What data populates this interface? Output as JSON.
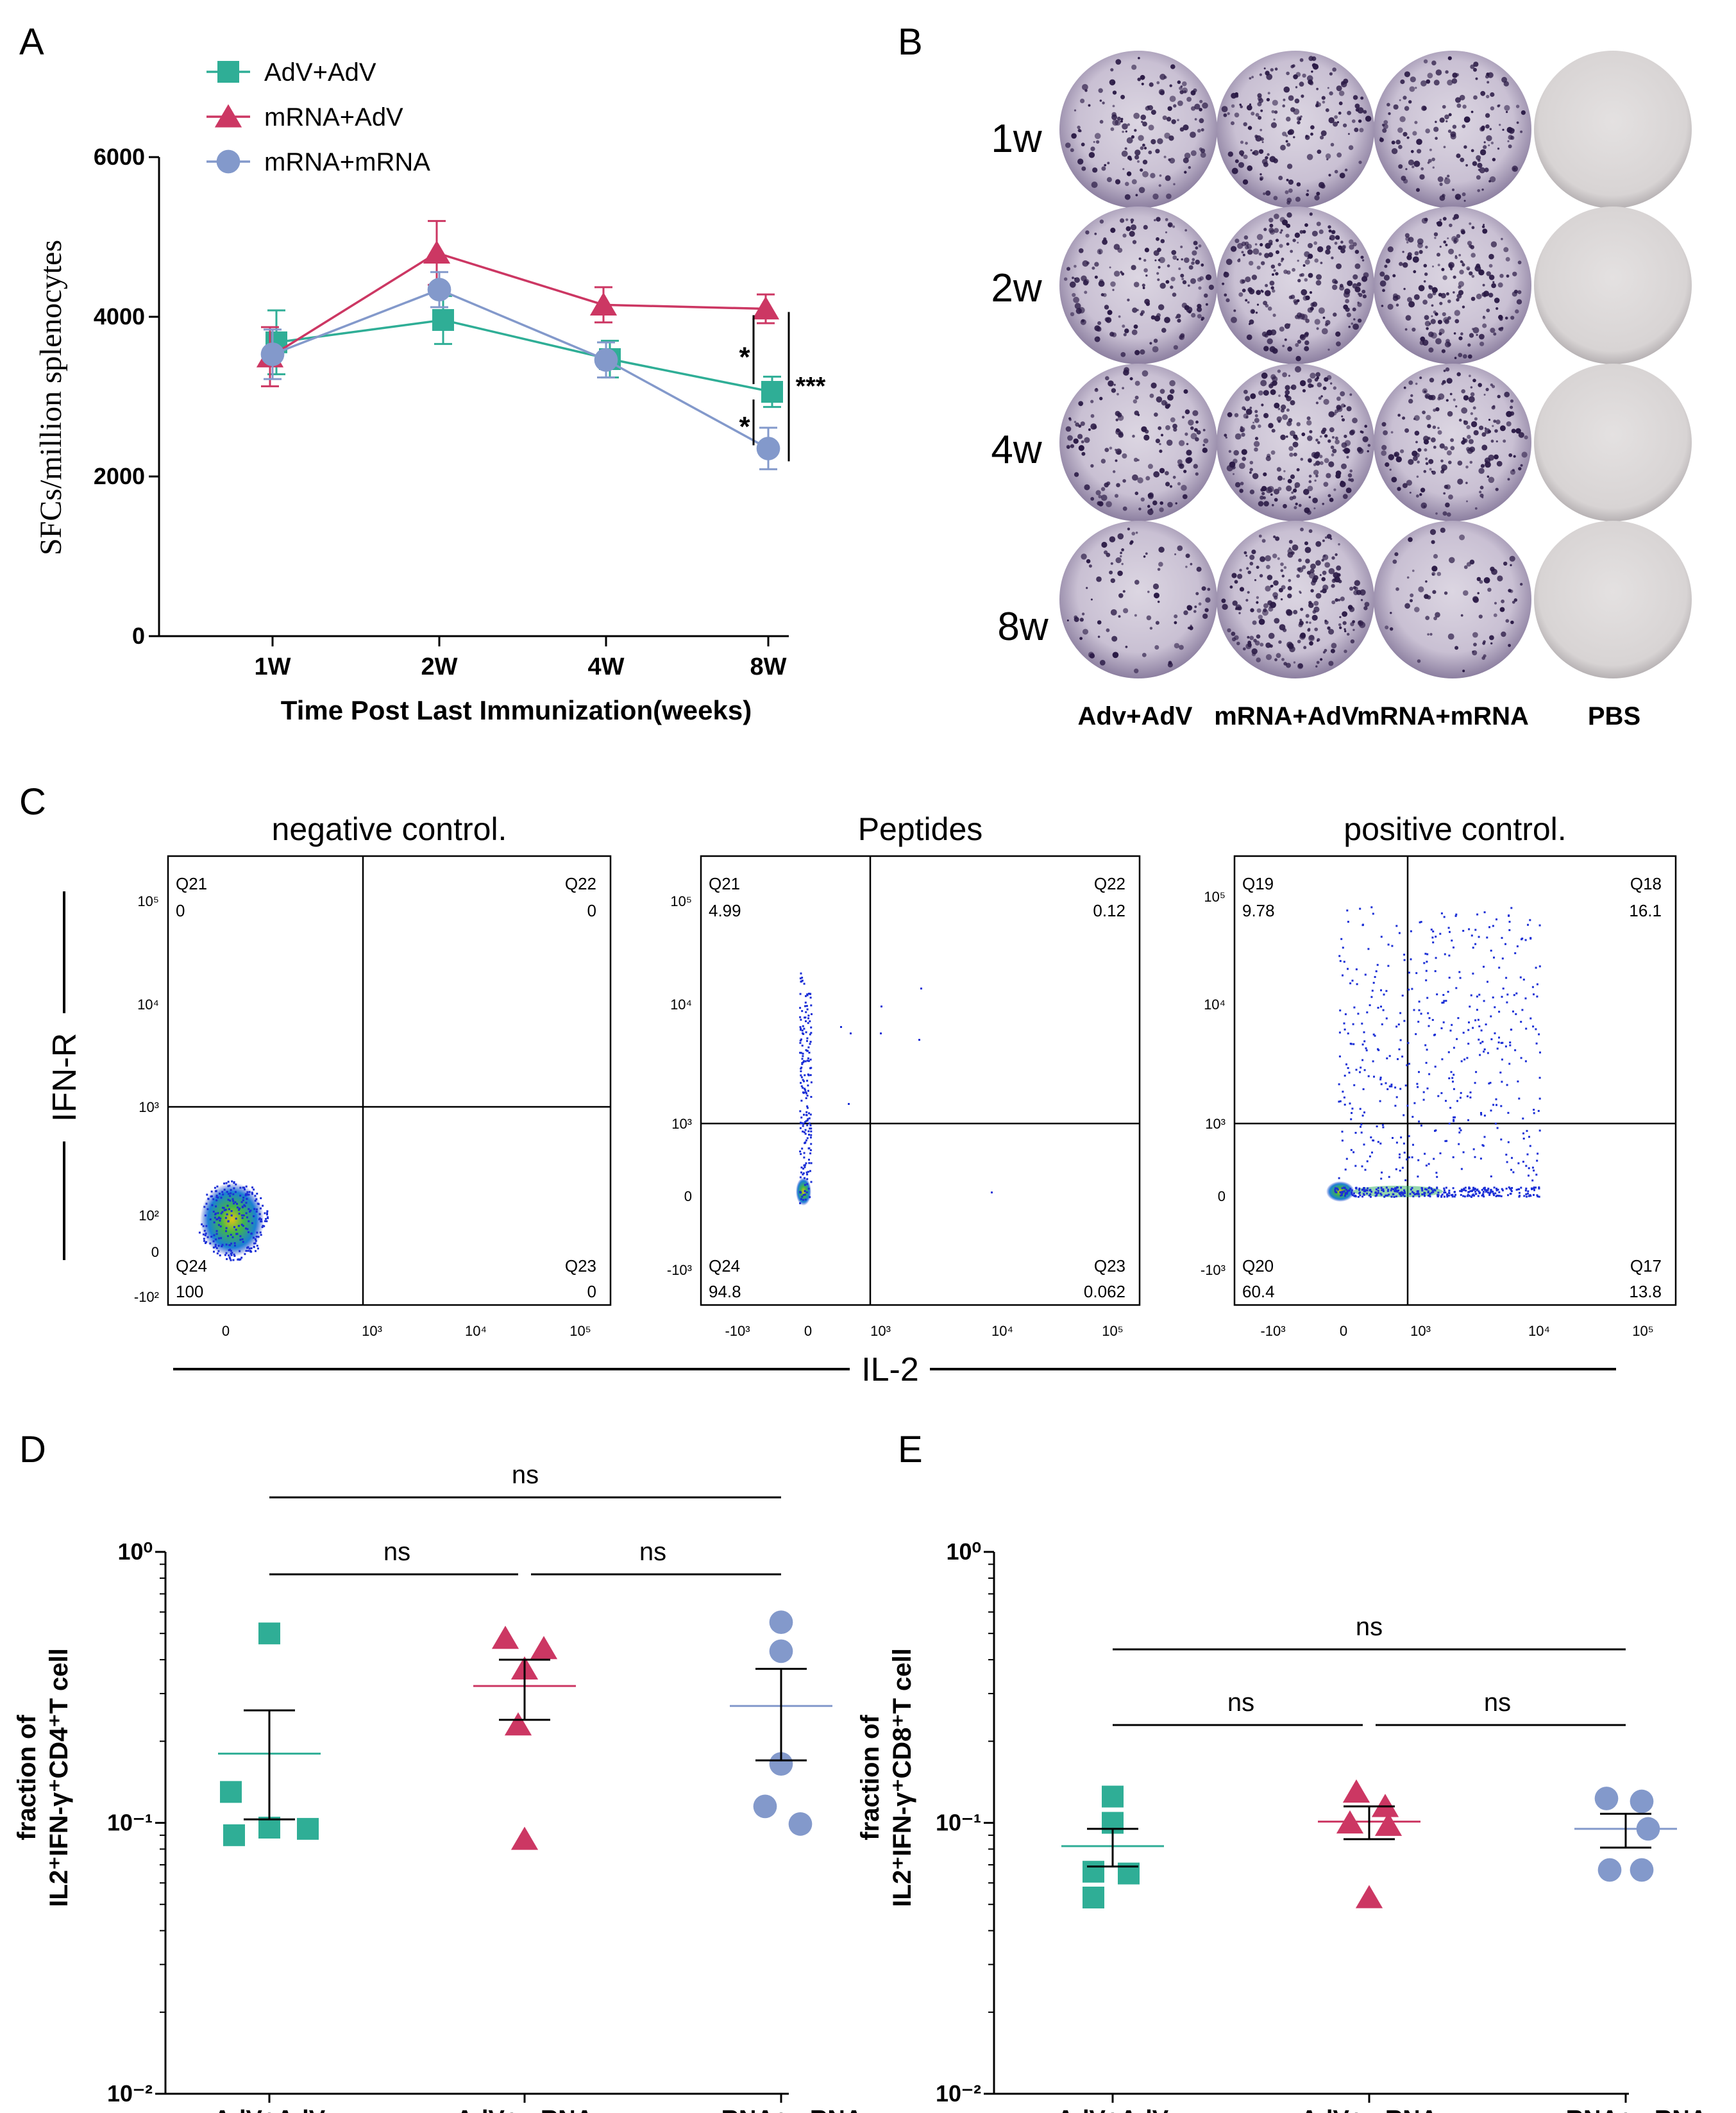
{
  "panel_letters": {
    "a": "A",
    "b": "B",
    "c": "C",
    "d": "D",
    "e": "E"
  },
  "colors": {
    "adv_adv": "#2fae96",
    "mrna_adv": "#cc3763",
    "mrna_mrna": "#8399cb",
    "axis": "#000000"
  },
  "chart_data": [
    {
      "id": "A",
      "type": "line",
      "title": "",
      "xlabel": "Time Post Last Immunization(weeks)",
      "ylabel": "SFCs/million splenocytes",
      "categories": [
        "1W",
        "2W",
        "4W",
        "8W"
      ],
      "ylim": [
        0,
        6000
      ],
      "yticks": [
        0,
        2000,
        4000,
        6000
      ],
      "legend": {
        "placement": "top-left"
      },
      "series": [
        {
          "name": "AdV+AdV",
          "marker": "square",
          "values": [
            3680,
            3960,
            3470,
            3060
          ],
          "errors": [
            400,
            300,
            230,
            190
          ]
        },
        {
          "name": "mRNA+AdV",
          "marker": "triangle",
          "values": [
            3500,
            4800,
            4150,
            4100
          ],
          "errors": [
            370,
            400,
            220,
            180
          ]
        },
        {
          "name": "mRNA+mRNA",
          "marker": "circle",
          "values": [
            3530,
            4340,
            3460,
            2350
          ],
          "errors": [
            310,
            220,
            220,
            260
          ]
        }
      ],
      "annotations": [
        {
          "text": "*",
          "between": [
            "mRNA+AdV",
            "AdV+AdV"
          ],
          "at": "8W"
        },
        {
          "text": "*",
          "between": [
            "AdV+AdV",
            "mRNA+mRNA"
          ],
          "at": "8W"
        },
        {
          "text": "***",
          "between": [
            "mRNA+AdV",
            "mRNA+mRNA"
          ],
          "at": "8W"
        }
      ]
    },
    {
      "id": "D",
      "type": "scatter",
      "ylabel_line1": "fraction of",
      "ylabel_line2": "IL2⁺IFN-γ⁺CD4⁺T cell",
      "yscale": "log",
      "ylim": [
        0.01,
        1
      ],
      "ytick_labels": [
        "10⁰",
        "10⁻¹",
        "10⁻²"
      ],
      "categories": [
        "AdV+AdV",
        "AdV+mRNA",
        "mRNA+mRNA"
      ],
      "groups": [
        {
          "name": "AdV+AdV",
          "marker": "square",
          "points": [
            0.5,
            0.13,
            0.096,
            0.09,
            0.095
          ],
          "mean": 0.18,
          "sem_low": 0.103,
          "sem_high": 0.26
        },
        {
          "name": "AdV+mRNA",
          "marker": "triangle",
          "points": [
            0.48,
            0.44,
            0.37,
            0.23,
            0.087
          ],
          "mean": 0.32,
          "sem_low": 0.24,
          "sem_high": 0.4
        },
        {
          "name": "mRNA+mRNA",
          "marker": "circle",
          "points": [
            0.55,
            0.43,
            0.165,
            0.115,
            0.099
          ],
          "mean": 0.27,
          "sem_low": 0.17,
          "sem_high": 0.37
        }
      ],
      "brackets": [
        {
          "from": "AdV+AdV",
          "to": "mRNA+mRNA",
          "text": "ns"
        },
        {
          "from": "AdV+AdV",
          "to": "AdV+mRNA",
          "text": "ns"
        },
        {
          "from": "AdV+mRNA",
          "to": "mRNA+mRNA",
          "text": "ns"
        }
      ]
    },
    {
      "id": "E",
      "type": "scatter",
      "ylabel_line1": "fraction of",
      "ylabel_line2": "IL2⁺IFN-γ⁺CD8⁺T cell",
      "yscale": "log",
      "ylim": [
        0.01,
        1
      ],
      "ytick_labels": [
        "10⁰",
        "10⁻¹",
        "10⁻²"
      ],
      "categories": [
        "AdV+AdV",
        "AdV+mRNA",
        "mRNA+mRNA"
      ],
      "groups": [
        {
          "name": "AdV+AdV",
          "marker": "square",
          "points": [
            0.125,
            0.1,
            0.066,
            0.065,
            0.053
          ],
          "mean": 0.082,
          "sem_low": 0.069,
          "sem_high": 0.095
        },
        {
          "name": "AdV+mRNA",
          "marker": "triangle",
          "points": [
            0.13,
            0.115,
            0.1,
            0.098,
            0.053
          ],
          "mean": 0.101,
          "sem_low": 0.087,
          "sem_high": 0.115
        },
        {
          "name": "mRNA+mRNA",
          "marker": "circle",
          "points": [
            0.123,
            0.12,
            0.095,
            0.067,
            0.067
          ],
          "mean": 0.095,
          "sem_low": 0.081,
          "sem_high": 0.108
        }
      ],
      "brackets": [
        {
          "from": "AdV+AdV",
          "to": "mRNA+mRNA",
          "text": "ns"
        },
        {
          "from": "AdV+AdV",
          "to": "AdV+mRNA",
          "text": "ns"
        },
        {
          "from": "AdV+mRNA",
          "to": "mRNA+mRNA",
          "text": "ns"
        }
      ]
    }
  ],
  "panel_b": {
    "row_labels": [
      "1w",
      "2w",
      "4w",
      "8w"
    ],
    "col_labels": [
      "Adv+AdV",
      "mRNA+AdV",
      "mRNA+mRNA",
      "PBS"
    ],
    "spot_density": [
      [
        150,
        180,
        160,
        0
      ],
      [
        170,
        230,
        200,
        0
      ],
      [
        160,
        240,
        190,
        0
      ],
      [
        90,
        230,
        80,
        0
      ]
    ]
  },
  "panel_c": {
    "y_axis_label": "IFN-R",
    "x_axis_label": "IL-2",
    "plots": [
      {
        "title": "negative control.",
        "quadrants": {
          "ul": {
            "name": "Q21",
            "value": "0"
          },
          "ur": {
            "name": "Q22",
            "value": "0"
          },
          "ll": {
            "name": "Q24",
            "value": "100"
          },
          "lr": {
            "name": "Q23",
            "value": "0"
          }
        },
        "x_ticks": [
          "0",
          "10³",
          "10⁴",
          "10⁵"
        ],
        "y_ticks": [
          "10⁵",
          "10⁴",
          "10³",
          "10²",
          "0",
          "-10²"
        ]
      },
      {
        "title": "Peptides",
        "quadrants": {
          "ul": {
            "name": "Q21",
            "value": "4.99"
          },
          "ur": {
            "name": "Q22",
            "value": "0.12"
          },
          "ll": {
            "name": "Q24",
            "value": "94.8"
          },
          "lr": {
            "name": "Q23",
            "value": "0.062"
          }
        },
        "x_ticks": [
          "-10³",
          "0",
          "10³",
          "10⁴",
          "10⁵"
        ],
        "y_ticks": [
          "10⁵",
          "10⁴",
          "10³",
          "0",
          "-10³"
        ]
      },
      {
        "title": "positive control.",
        "quadrants": {
          "ul": {
            "name": "Q19",
            "value": "9.78"
          },
          "ur": {
            "name": "Q18",
            "value": "16.1"
          },
          "ll": {
            "name": "Q20",
            "value": "60.4"
          },
          "lr": {
            "name": "Q17",
            "value": "13.8"
          }
        },
        "x_ticks": [
          "-10³",
          "0",
          "10³",
          "10⁴",
          "10⁵"
        ],
        "y_ticks": [
          "10⁵",
          "10⁴",
          "10³",
          "0",
          "-10³"
        ]
      }
    ]
  }
}
